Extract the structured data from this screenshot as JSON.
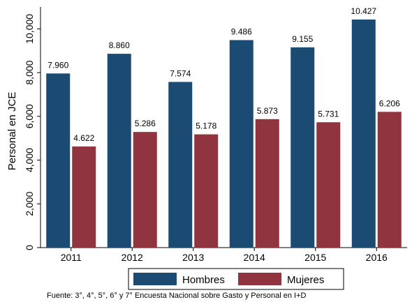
{
  "chart_data": {
    "type": "bar",
    "categories": [
      "2011",
      "2012",
      "2013",
      "2014",
      "2015",
      "2016"
    ],
    "series": [
      {
        "name": "Hombres",
        "color": "#1b4a72",
        "values": [
          7960,
          8860,
          7574,
          9486,
          9155,
          10427
        ],
        "labels": [
          "7.960",
          "8.860",
          "7.574",
          "9.486",
          "9.155",
          "10.427"
        ]
      },
      {
        "name": "Mujeres",
        "color": "#90353f",
        "values": [
          4622,
          5286,
          5178,
          5873,
          5731,
          6206
        ],
        "labels": [
          "4.622",
          "5.286",
          "5.178",
          "5.873",
          "5.731",
          "6.206"
        ]
      }
    ],
    "ylabel": "Personal en JCE",
    "xlabel": "",
    "ylim": [
      0,
      11000
    ],
    "yticks": [
      0,
      2000,
      4000,
      6000,
      8000,
      10000
    ],
    "ytick_labels": [
      "0",
      "2,000",
      "4,000",
      "6,000",
      "8,000",
      "10,000"
    ],
    "legend_position": "bottom",
    "grid": false
  },
  "source_note": "Fuente: 3°, 4°, 5°, 6° y 7° Encuesta Nacional sobre Gasto y Personal en I+D"
}
